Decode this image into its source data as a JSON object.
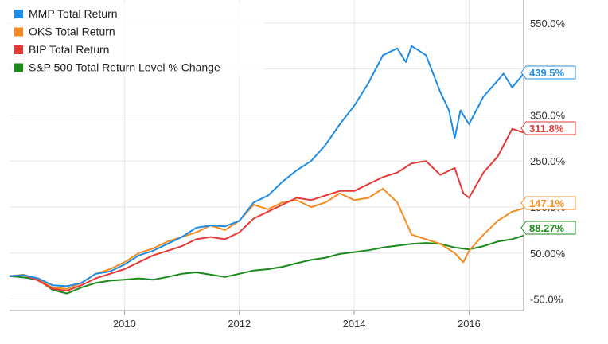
{
  "chart_data": {
    "type": "line",
    "title": "",
    "xlabel": "",
    "ylabel": "",
    "xlim": [
      2008.0,
      2016.95
    ],
    "ylim": [
      -75,
      600
    ],
    "x_ticks": [
      2010,
      2012,
      2014,
      2016
    ],
    "x_tick_labels": [
      "2010",
      "2012",
      "2014",
      "2016"
    ],
    "y_ticks": [
      -50,
      50,
      150,
      250,
      350,
      450,
      550
    ],
    "y_tick_labels": [
      "-50.0%",
      "50.00%",
      "150.0%",
      "250.0%",
      "350.0%",
      "450.0%",
      "550.0%"
    ],
    "grid": true,
    "legend_position": "top-left",
    "series": [
      {
        "name": "MMP Total Return",
        "color": "#1f8ce6",
        "end_label": "439.5%",
        "x": [
          2008.0,
          2008.25,
          2008.5,
          2008.75,
          2009.0,
          2009.25,
          2009.5,
          2009.75,
          2010.0,
          2010.25,
          2010.5,
          2010.75,
          2011.0,
          2011.25,
          2011.5,
          2011.75,
          2012.0,
          2012.25,
          2012.5,
          2012.75,
          2013.0,
          2013.25,
          2013.5,
          2013.75,
          2014.0,
          2014.25,
          2014.5,
          2014.75,
          2014.9,
          2015.0,
          2015.25,
          2015.5,
          2015.65,
          2015.75,
          2015.85,
          2016.0,
          2016.25,
          2016.5,
          2016.6,
          2016.75,
          2016.95
        ],
        "y": [
          0,
          2,
          -5,
          -20,
          -22,
          -15,
          5,
          10,
          25,
          45,
          55,
          70,
          85,
          105,
          110,
          108,
          120,
          160,
          175,
          205,
          230,
          250,
          285,
          330,
          370,
          420,
          480,
          495,
          465,
          500,
          480,
          400,
          360,
          300,
          360,
          330,
          390,
          425,
          440,
          410,
          440
        ]
      },
      {
        "name": "OKS Total Return",
        "color": "#f68b1f",
        "end_label": "147.1%",
        "x": [
          2008.0,
          2008.25,
          2008.5,
          2008.75,
          2009.0,
          2009.25,
          2009.5,
          2009.75,
          2010.0,
          2010.25,
          2010.5,
          2010.75,
          2011.0,
          2011.25,
          2011.5,
          2011.75,
          2012.0,
          2012.25,
          2012.5,
          2012.75,
          2013.0,
          2013.25,
          2013.5,
          2013.75,
          2014.0,
          2014.25,
          2014.5,
          2014.75,
          2015.0,
          2015.25,
          2015.5,
          2015.75,
          2015.9,
          2016.0,
          2016.25,
          2016.5,
          2016.75,
          2016.95
        ],
        "y": [
          0,
          3,
          -8,
          -25,
          -28,
          -15,
          5,
          15,
          30,
          50,
          60,
          75,
          85,
          95,
          110,
          100,
          120,
          155,
          145,
          160,
          165,
          150,
          160,
          180,
          165,
          170,
          190,
          160,
          90,
          80,
          70,
          50,
          30,
          55,
          90,
          120,
          140,
          147
        ]
      },
      {
        "name": "BIP Total Return",
        "color": "#e53935",
        "end_label": "311.8%",
        "x": [
          2008.0,
          2008.25,
          2008.5,
          2008.75,
          2009.0,
          2009.25,
          2009.5,
          2009.75,
          2010.0,
          2010.25,
          2010.5,
          2010.75,
          2011.0,
          2011.25,
          2011.5,
          2011.75,
          2012.0,
          2012.25,
          2012.5,
          2012.75,
          2013.0,
          2013.25,
          2013.5,
          2013.75,
          2014.0,
          2014.25,
          2014.5,
          2014.75,
          2015.0,
          2015.25,
          2015.5,
          2015.75,
          2015.9,
          2016.0,
          2016.25,
          2016.5,
          2016.75,
          2016.95
        ],
        "y": [
          0,
          2,
          -10,
          -28,
          -32,
          -20,
          -5,
          5,
          15,
          30,
          45,
          55,
          65,
          80,
          85,
          80,
          95,
          125,
          140,
          155,
          170,
          165,
          175,
          185,
          185,
          200,
          215,
          225,
          245,
          250,
          220,
          235,
          180,
          170,
          225,
          260,
          320,
          312
        ]
      },
      {
        "name": "S&P 500 Total Return Level % Change",
        "color": "#1a8a1a",
        "end_label": "88.27%",
        "x": [
          2008.0,
          2008.25,
          2008.5,
          2008.75,
          2009.0,
          2009.25,
          2009.5,
          2009.75,
          2010.0,
          2010.25,
          2010.5,
          2010.75,
          2011.0,
          2011.25,
          2011.5,
          2011.75,
          2012.0,
          2012.25,
          2012.5,
          2012.75,
          2013.0,
          2013.25,
          2013.5,
          2013.75,
          2014.0,
          2014.25,
          2014.5,
          2014.75,
          2015.0,
          2015.25,
          2015.5,
          2015.75,
          2016.0,
          2016.25,
          2016.5,
          2016.75,
          2016.95
        ],
        "y": [
          0,
          -3,
          -8,
          -30,
          -38,
          -25,
          -15,
          -10,
          -8,
          -5,
          -8,
          -2,
          5,
          8,
          3,
          -2,
          5,
          12,
          15,
          20,
          28,
          35,
          40,
          48,
          52,
          56,
          62,
          66,
          70,
          72,
          70,
          62,
          58,
          65,
          75,
          80,
          88
        ]
      }
    ]
  }
}
